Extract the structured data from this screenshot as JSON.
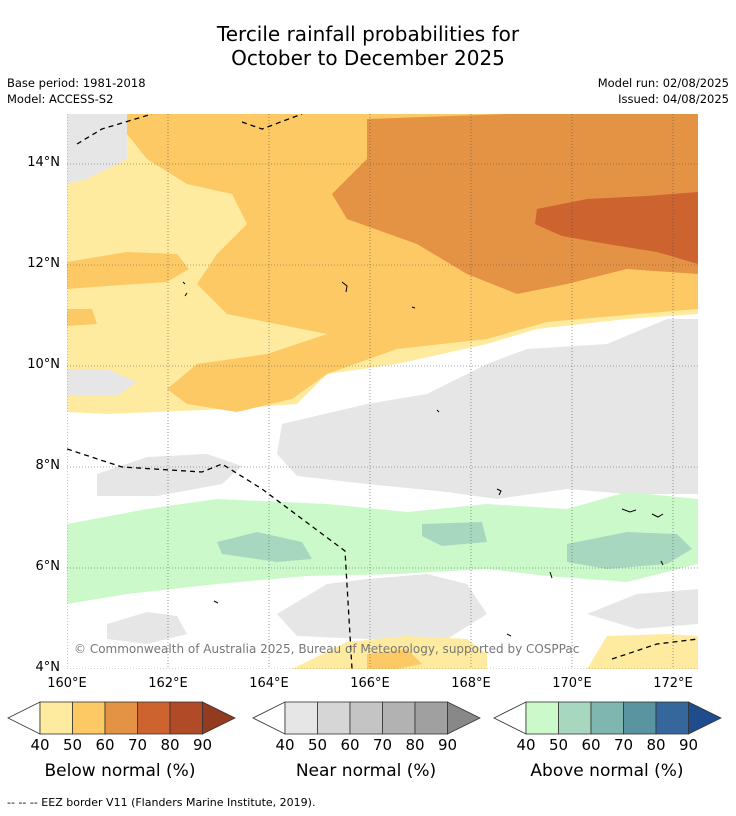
{
  "title_line1": "Tercile rainfall probabilities for",
  "title_line2": "October to December 2025",
  "meta": {
    "base_period": "Base period: 1981-2018",
    "model": "Model: ACCESS-S2",
    "model_run": "Model run: 02/08/2025",
    "issued": "Issued: 04/08/2025"
  },
  "map": {
    "lat_labels": [
      "14°N",
      "12°N",
      "10°N",
      "8°N",
      "6°N",
      "4°N"
    ],
    "lon_labels": [
      "160°E",
      "162°E",
      "164°E",
      "166°E",
      "168°E",
      "170°E",
      "172°E"
    ],
    "copyright": "© Commonwealth of Australia 2025, Bureau of Meteorology, supported by COSPPac"
  },
  "legend": {
    "below": {
      "title": "Below normal (%)",
      "ticks": [
        "40",
        "50",
        "60",
        "70",
        "80",
        "90"
      ],
      "colors": [
        "#ffeb9f",
        "#fdc965",
        "#e49244",
        "#cd632f",
        "#b04a27",
        "#933b1e"
      ]
    },
    "near": {
      "title": "Near normal (%)",
      "ticks": [
        "40",
        "50",
        "60",
        "70",
        "80",
        "90"
      ],
      "colors": [
        "#e6e6e6",
        "#d6d6d6",
        "#c4c4c4",
        "#b2b2b2",
        "#a0a0a0",
        "#888888"
      ]
    },
    "above": {
      "title": "Above normal (%)",
      "ticks": [
        "40",
        "50",
        "60",
        "70",
        "80",
        "90"
      ],
      "colors": [
        "#cbf9c9",
        "#a7d8bf",
        "#7fb7b0",
        "#5a94a0",
        "#35679d",
        "#1f4c8c"
      ]
    }
  },
  "footnote": "--  --  -- EEZ border V11 (Flanders Marine Institute, 2019)."
}
